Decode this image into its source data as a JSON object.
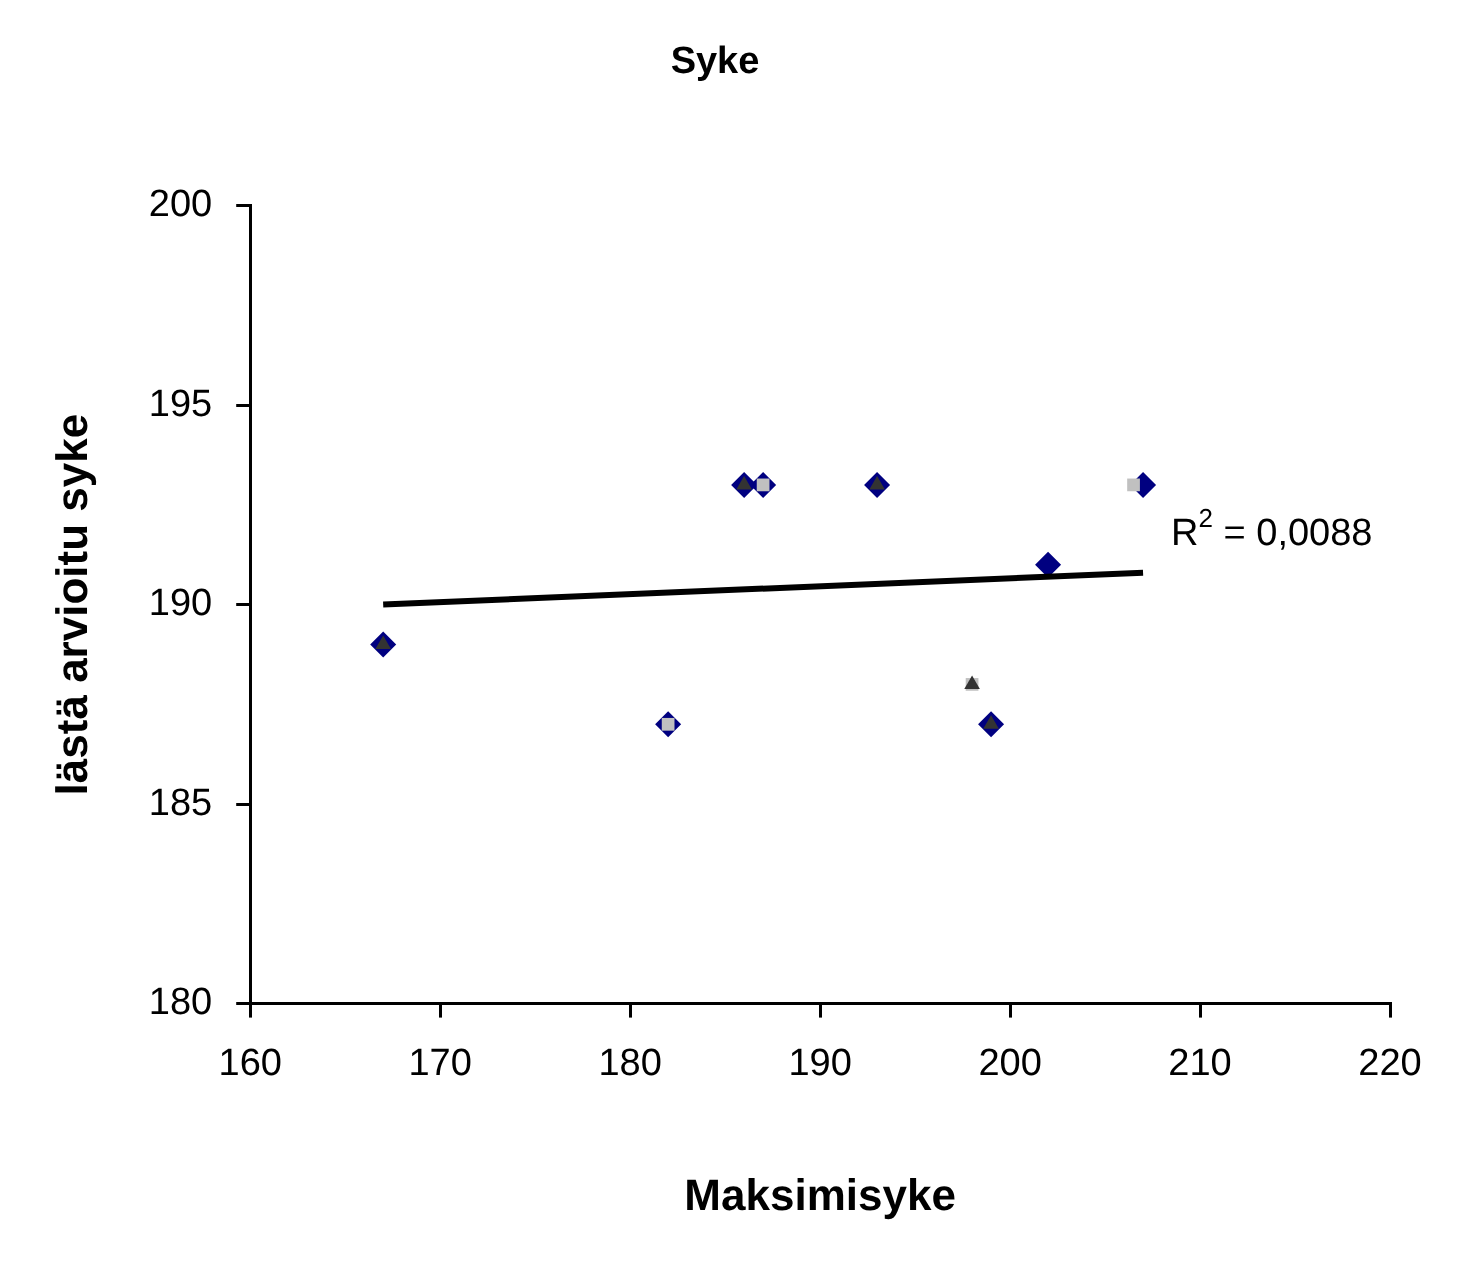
{
  "chart_data": {
    "type": "scatter",
    "title": "Syke",
    "xlabel": "Maksimisyke",
    "ylabel": "lästä arvioitu syke",
    "xlim": [
      160,
      220
    ],
    "xticks": [
      160,
      170,
      180,
      190,
      200,
      210,
      220
    ],
    "ylim": [
      180,
      200
    ],
    "yticks": [
      180,
      185,
      190,
      195,
      200
    ],
    "grid": false,
    "legend": false,
    "series": [
      {
        "color": "#000080",
        "marker": "diamond",
        "x": [
          167,
          182,
          186,
          187,
          193,
          199,
          202,
          207
        ],
        "values": [
          189,
          187,
          193,
          193,
          193,
          187,
          191,
          193
        ]
      },
      {
        "color": "#c0c0c0",
        "marker": "square",
        "x": [
          182,
          187,
          198,
          206.5
        ],
        "values": [
          187,
          193,
          188,
          193
        ]
      },
      {
        "color": "#333333",
        "marker": "triangle",
        "x": [
          167,
          186,
          193,
          198,
          199
        ],
        "values": [
          189,
          193,
          193,
          188,
          187
        ]
      },
      {
        "type": "line",
        "color": "#000000",
        "marker": "none",
        "x": [
          167,
          207
        ],
        "values": [
          190,
          190.8
        ]
      }
    ],
    "annotations": [
      {
        "text": "R$^{2}$ = 0,0088",
        "x": 207,
        "y": 190.8
      }
    ]
  }
}
